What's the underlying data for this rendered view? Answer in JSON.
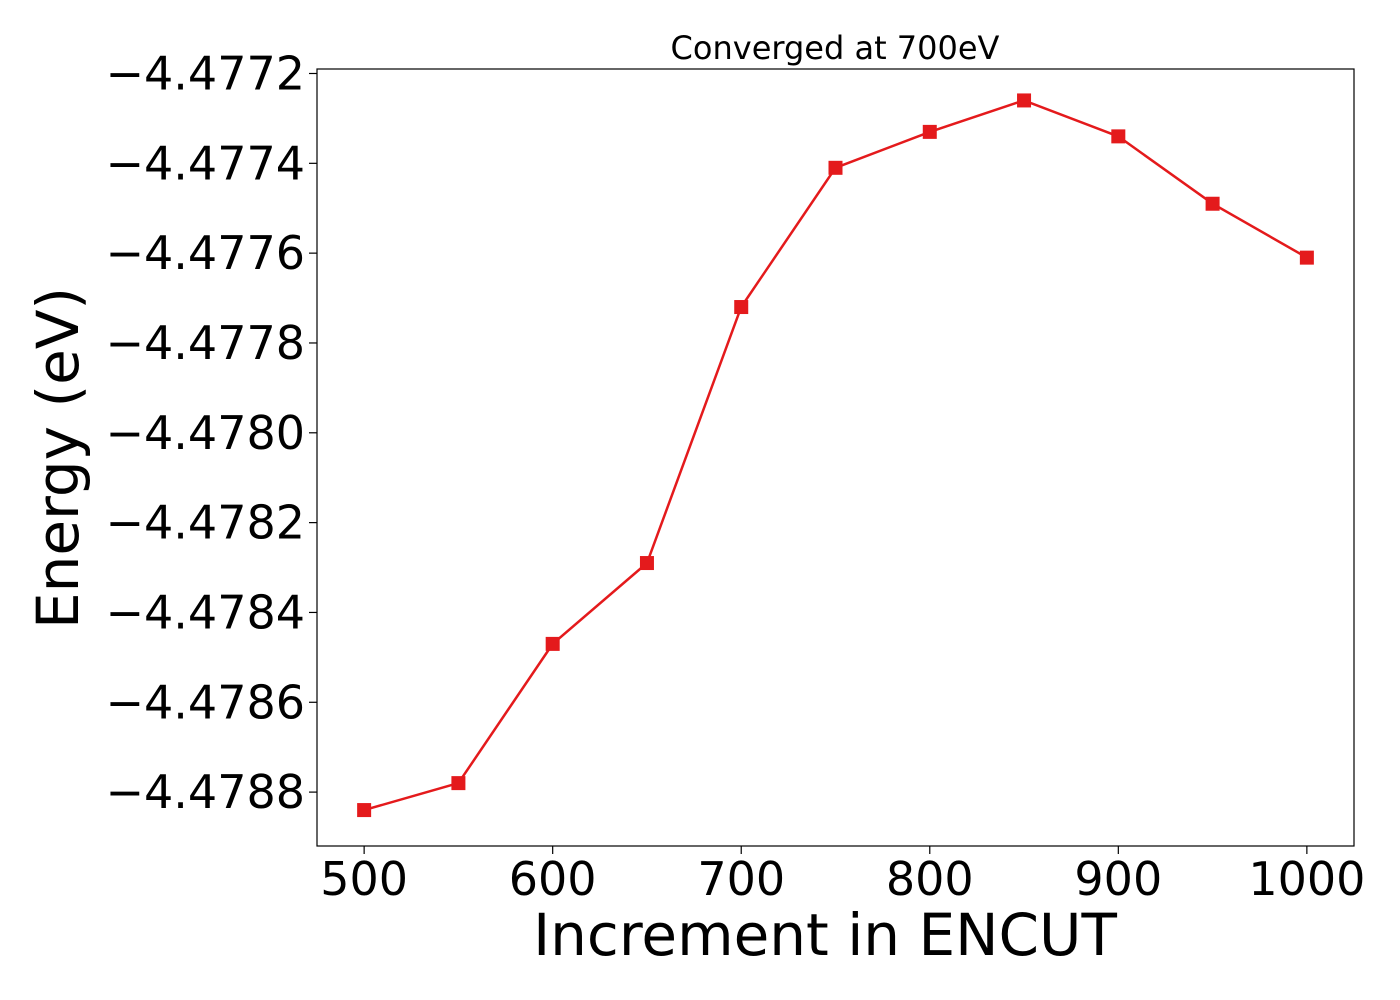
{
  "chart_data": {
    "type": "line",
    "title": "Converged at 700eV",
    "xlabel": "Increment in ENCUT",
    "ylabel": "Energy (eV)",
    "xlim": [
      475,
      1025
    ],
    "ylim": [
      -4.47892,
      -4.47719
    ],
    "xticks": [
      500,
      600,
      700,
      800,
      900,
      1000
    ],
    "xtick_labels": [
      "500",
      "600",
      "700",
      "800",
      "900",
      "1000"
    ],
    "yticks": [
      -4.4788,
      -4.4786,
      -4.4784,
      -4.4782,
      -4.478,
      -4.4778,
      -4.4776,
      -4.4774,
      -4.4772
    ],
    "ytick_labels": [
      "−4.4788",
      "−4.4786",
      "−4.4784",
      "−4.4782",
      "−4.4780",
      "−4.4778",
      "−4.4776",
      "−4.4774",
      "−4.4772"
    ],
    "grid": false,
    "series": [
      {
        "color": "#e41a1c",
        "marker": "square",
        "x": [
          500,
          550,
          600,
          650,
          700,
          750,
          800,
          850,
          900,
          950,
          1000
        ],
        "y": [
          -4.47884,
          -4.47878,
          -4.47847,
          -4.47829,
          -4.47772,
          -4.47741,
          -4.47733,
          -4.47726,
          -4.47734,
          -4.47749,
          -4.47761
        ]
      }
    ]
  }
}
